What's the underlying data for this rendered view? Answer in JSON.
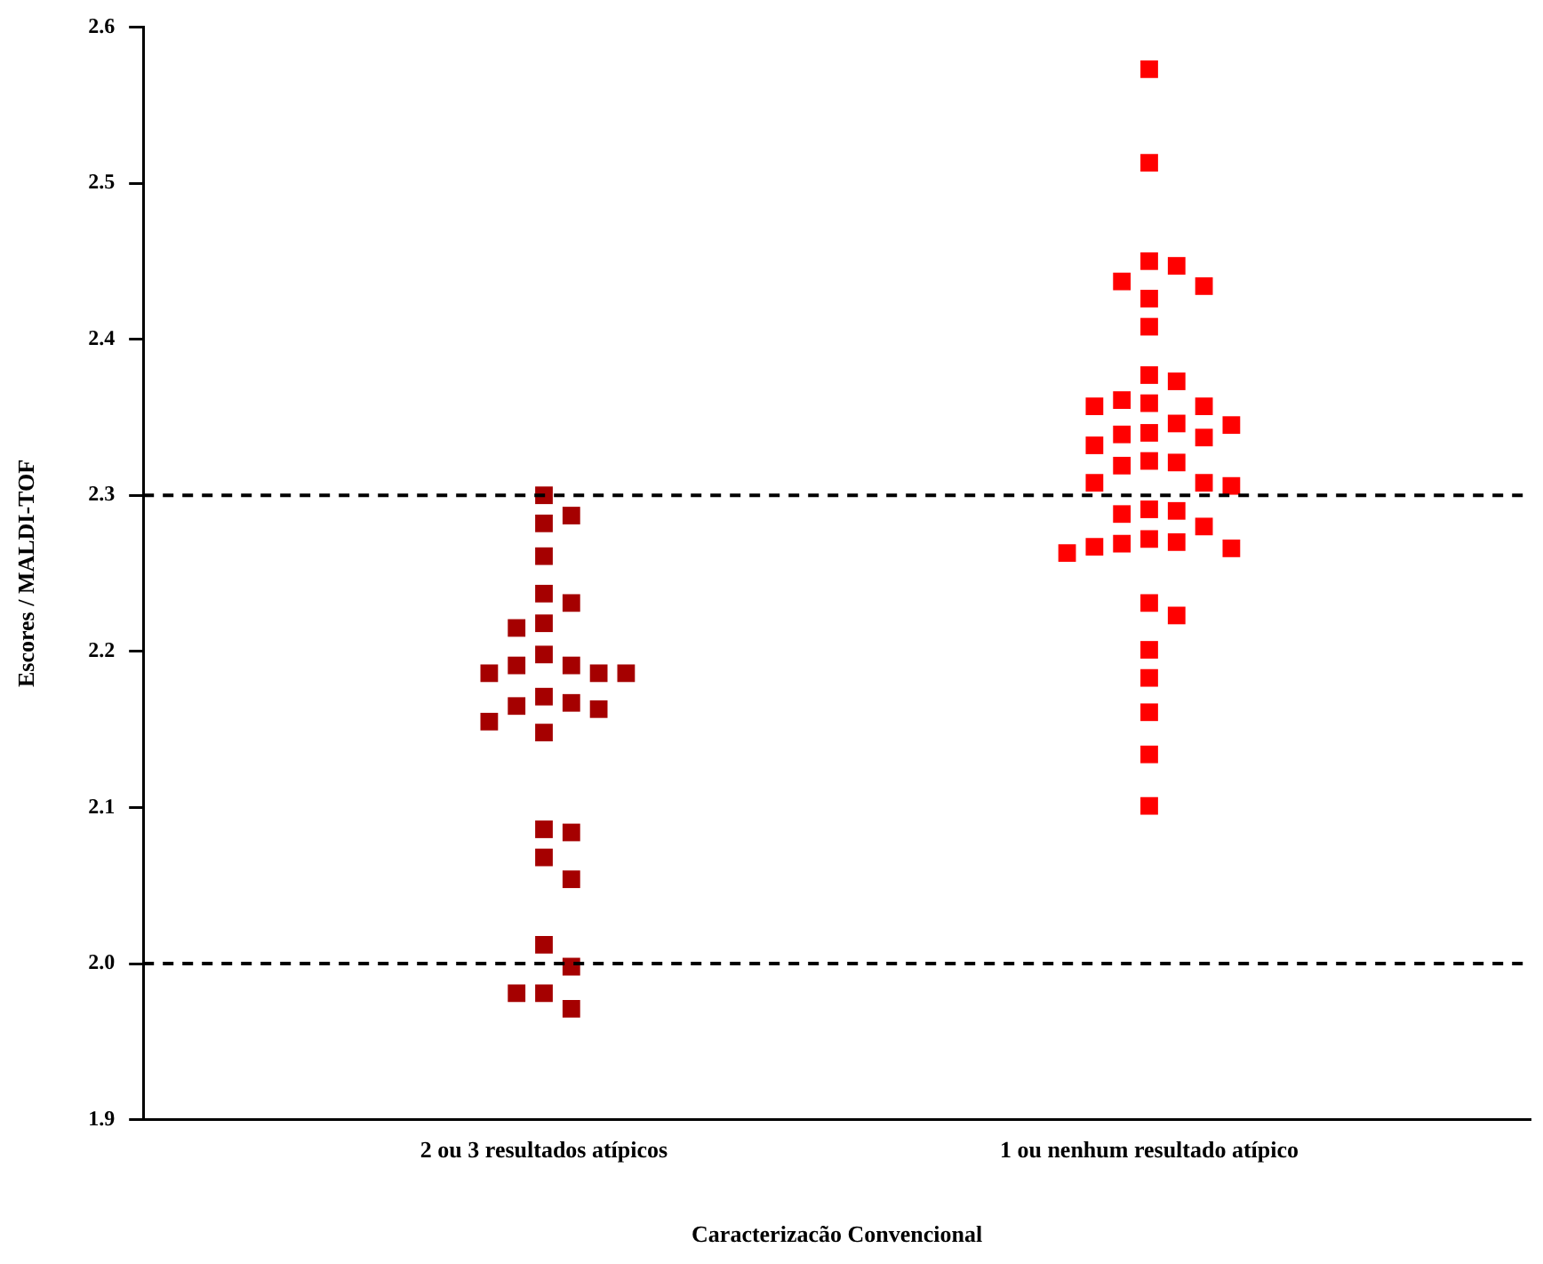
{
  "chart_data": {
    "type": "scatter",
    "xlabel": "Caracterizacão Convencional",
    "ylabel": "Escores / MALDI-TOF",
    "categories": [
      "2 ou 3 resultados atípicos",
      "1 ou nenhum resultado atípico"
    ],
    "series": [
      {
        "color": "#a50000",
        "x": [
          "2 ou 3 resultados atípicos",
          "2 ou 3 resultados atípicos",
          "2 ou 3 resultados atípicos",
          "2 ou 3 resultados atípicos",
          "2 ou 3 resultados atípicos",
          "2 ou 3 resultados atípicos",
          "2 ou 3 resultados atípicos",
          "2 ou 3 resultados atípicos",
          "2 ou 3 resultados atípicos",
          "2 ou 3 resultados atípicos",
          "2 ou 3 resultados atípicos",
          "2 ou 3 resultados atípicos",
          "2 ou 3 resultados atípicos",
          "2 ou 3 resultados atípicos",
          "2 ou 3 resultados atípicos",
          "2 ou 3 resultados atípicos",
          "2 ou 3 resultados atípicos",
          "2 ou 3 resultados atípicos",
          "2 ou 3 resultados atípicos",
          "2 ou 3 resultados atípicos",
          "2 ou 3 resultados atípicos",
          "2 ou 3 resultados atípicos",
          "2 ou 3 resultados atípicos",
          "2 ou 3 resultados atípicos",
          "2 ou 3 resultados atípicos",
          "2 ou 3 resultados atípicos",
          "2 ou 3 resultados atípicos",
          "2 ou 3 resultados atípicos",
          "2 ou 3 resultados atípicos"
        ],
        "values": [
          2.3,
          2.287,
          2.282,
          2.261,
          2.237,
          2.231,
          2.218,
          2.215,
          2.198,
          2.191,
          2.191,
          2.186,
          2.186,
          2.186,
          2.171,
          2.167,
          2.165,
          2.163,
          2.155,
          2.148,
          2.086,
          2.084,
          2.068,
          2.054,
          2.012,
          1.998,
          1.981,
          1.981,
          1.971
        ]
      },
      {
        "color": "#ff0000",
        "x": [
          "1 ou nenhum resultado atípico",
          "1 ou nenhum resultado atípico",
          "1 ou nenhum resultado atípico",
          "1 ou nenhum resultado atípico",
          "1 ou nenhum resultado atípico",
          "1 ou nenhum resultado atípico",
          "1 ou nenhum resultado atípico",
          "1 ou nenhum resultado atípico",
          "1 ou nenhum resultado atípico",
          "1 ou nenhum resultado atípico",
          "1 ou nenhum resultado atípico",
          "1 ou nenhum resultado atípico",
          "1 ou nenhum resultado atípico",
          "1 ou nenhum resultado atípico",
          "1 ou nenhum resultado atípico",
          "1 ou nenhum resultado atípico",
          "1 ou nenhum resultado atípico",
          "1 ou nenhum resultado atípico",
          "1 ou nenhum resultado atípico",
          "1 ou nenhum resultado atípico",
          "1 ou nenhum resultado atípico",
          "1 ou nenhum resultado atípico",
          "1 ou nenhum resultado atípico",
          "1 ou nenhum resultado atípico",
          "1 ou nenhum resultado atípico",
          "1 ou nenhum resultado atípico",
          "1 ou nenhum resultado atípico",
          "1 ou nenhum resultado atípico",
          "1 ou nenhum resultado atípico",
          "1 ou nenhum resultado atípico",
          "1 ou nenhum resultado atípico",
          "1 ou nenhum resultado atípico",
          "1 ou nenhum resultado atípico",
          "1 ou nenhum resultado atípico",
          "1 ou nenhum resultado atípico",
          "1 ou nenhum resultado atípico",
          "1 ou nenhum resultado atípico",
          "1 ou nenhum resultado atípico",
          "1 ou nenhum resultado atípico",
          "1 ou nenhum resultado atípico",
          "1 ou nenhum resultado atípico",
          "1 ou nenhum resultado atípico",
          "1 ou nenhum resultado atípico"
        ],
        "values": [
          2.573,
          2.513,
          2.45,
          2.447,
          2.437,
          2.434,
          2.426,
          2.408,
          2.377,
          2.373,
          2.361,
          2.359,
          2.357,
          2.357,
          2.346,
          2.345,
          2.34,
          2.339,
          2.337,
          2.332,
          2.322,
          2.321,
          2.319,
          2.308,
          2.308,
          2.306,
          2.291,
          2.29,
          2.288,
          2.28,
          2.272,
          2.27,
          2.269,
          2.267,
          2.266,
          2.263,
          2.231,
          2.223,
          2.201,
          2.183,
          2.161,
          2.134,
          2.101
        ]
      }
    ],
    "ylim": [
      1.9,
      2.6
    ],
    "yticks": [
      {
        "value": 1.9,
        "label": "1.9"
      },
      {
        "value": 2,
        "label": "2.0"
      },
      {
        "value": 2.1,
        "label": "2.1"
      },
      {
        "value": 2.2,
        "label": "2.2"
      },
      {
        "value": 2.3,
        "label": "2.3"
      },
      {
        "value": 2.4,
        "label": "2.4"
      },
      {
        "value": 2.5,
        "label": "2.5"
      },
      {
        "value": 2.6,
        "label": "2.6"
      }
    ],
    "ref_lines": [
      {
        "axis": "y",
        "value": 2.3,
        "color": "#000000",
        "line_style": "dashed"
      },
      {
        "axis": "y",
        "value": 2.0,
        "color": "#000000",
        "line_style": "dashed"
      }
    ],
    "grid": false,
    "legend": false,
    "marker": "square"
  }
}
